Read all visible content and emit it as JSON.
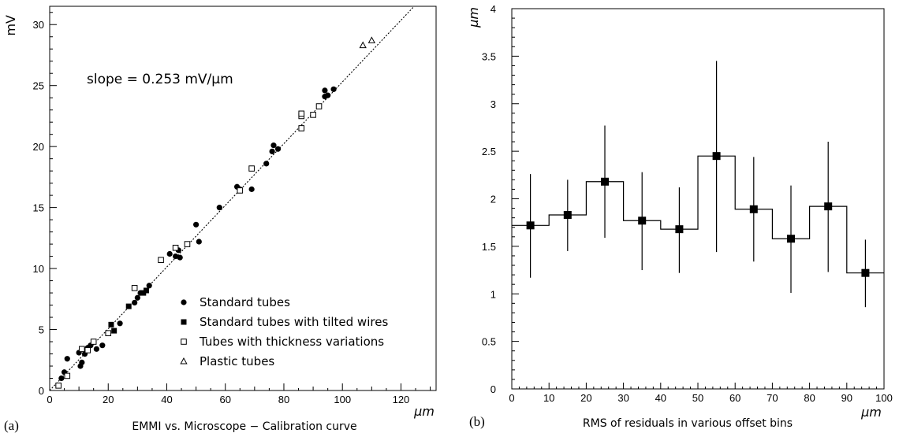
{
  "chart_data": [
    {
      "type": "scatter",
      "panel_label": "(a)",
      "xlabel": "EMMI vs. Microscope − Calibration curve",
      "x_unit": "μm",
      "y_unit": "mV",
      "xlim": [
        0,
        132
      ],
      "ylim": [
        0,
        31.5
      ],
      "x_ticks": [
        0,
        20,
        40,
        60,
        80,
        100,
        120
      ],
      "y_ticks": [
        0,
        5,
        10,
        15,
        20,
        25,
        30
      ],
      "annotation": "slope = 0.253 mV/μm",
      "fit_line": {
        "slope": 0.253,
        "intercept": 0
      },
      "legend_position": "bottom-right",
      "series": [
        {
          "name": "Standard tubes",
          "marker": "filled-circle",
          "points": [
            [
              4,
              1.0
            ],
            [
              5,
              1.5
            ],
            [
              6,
              2.6
            ],
            [
              10,
              3.1
            ],
            [
              10.5,
              2.0
            ],
            [
              11,
              2.3
            ],
            [
              12,
              3.0
            ],
            [
              13,
              3.5
            ],
            [
              14,
              3.7
            ],
            [
              16,
              3.4
            ],
            [
              18,
              3.7
            ],
            [
              24,
              5.5
            ],
            [
              29,
              7.2
            ],
            [
              30,
              7.6
            ],
            [
              31,
              8.0
            ],
            [
              34,
              8.6
            ],
            [
              41,
              11.2
            ],
            [
              43,
              11.0
            ],
            [
              44,
              11.5
            ],
            [
              44.5,
              10.9
            ],
            [
              50,
              13.6
            ],
            [
              51,
              12.2
            ],
            [
              58,
              15.0
            ],
            [
              64,
              16.7
            ],
            [
              65,
              16.5
            ],
            [
              69,
              16.5
            ],
            [
              74,
              18.6
            ],
            [
              76,
              19.6
            ],
            [
              76.5,
              20.1
            ],
            [
              78,
              19.8
            ],
            [
              94,
              24.6
            ],
            [
              94,
              24.1
            ],
            [
              95,
              24.2
            ],
            [
              97,
              24.7
            ]
          ]
        },
        {
          "name": "Standard tubes with tilted wires",
          "marker": "filled-square",
          "points": [
            [
              27,
              6.9
            ],
            [
              21,
              5.4
            ],
            [
              22,
              4.9
            ],
            [
              32,
              8.0
            ],
            [
              33,
              8.2
            ]
          ]
        },
        {
          "name": "Tubes with thickness variations",
          "marker": "open-square",
          "points": [
            [
              3,
              0.4
            ],
            [
              6,
              1.2
            ],
            [
              11,
              3.4
            ],
            [
              13,
              3.3
            ],
            [
              15,
              4.0
            ],
            [
              20,
              4.7
            ],
            [
              29,
              8.4
            ],
            [
              38,
              10.7
            ],
            [
              43,
              11.7
            ],
            [
              47,
              12.0
            ],
            [
              65,
              16.4
            ],
            [
              69,
              18.2
            ],
            [
              86,
              21.5
            ],
            [
              86,
              22.5
            ],
            [
              86,
              22.7
            ],
            [
              90,
              22.6
            ],
            [
              92,
              23.3
            ]
          ]
        },
        {
          "name": "Plastic tubes",
          "marker": "open-triangle",
          "points": [
            [
              107,
              28.3
            ],
            [
              110,
              28.7
            ]
          ]
        }
      ]
    },
    {
      "type": "bar",
      "subtype": "histogram-with-errorbars",
      "panel_label": "(b)",
      "xlabel": "RMS of residuals in various offset bins",
      "x_unit": "μm",
      "y_unit": "μm",
      "xlim": [
        0,
        100
      ],
      "ylim": [
        0,
        4
      ],
      "x_ticks": [
        0,
        10,
        20,
        30,
        40,
        50,
        60,
        70,
        80,
        90,
        100
      ],
      "y_ticks": [
        "0",
        "0.5",
        "1",
        "1.5",
        "2",
        "2.5",
        "3",
        "3.5",
        "4"
      ],
      "bin_edges": [
        0,
        10,
        20,
        30,
        40,
        50,
        60,
        70,
        80,
        90,
        100
      ],
      "x": [
        5,
        15,
        25,
        35,
        45,
        55,
        65,
        75,
        85,
        95
      ],
      "values": [
        1.72,
        1.83,
        2.18,
        1.77,
        1.68,
        2.45,
        1.89,
        1.58,
        1.92,
        1.22
      ],
      "err_low": [
        1.17,
        1.45,
        1.59,
        1.25,
        1.22,
        1.44,
        1.34,
        1.01,
        1.23,
        0.86
      ],
      "err_high": [
        2.26,
        2.2,
        2.77,
        2.28,
        2.12,
        3.45,
        2.44,
        2.14,
        2.6,
        1.57
      ]
    }
  ]
}
